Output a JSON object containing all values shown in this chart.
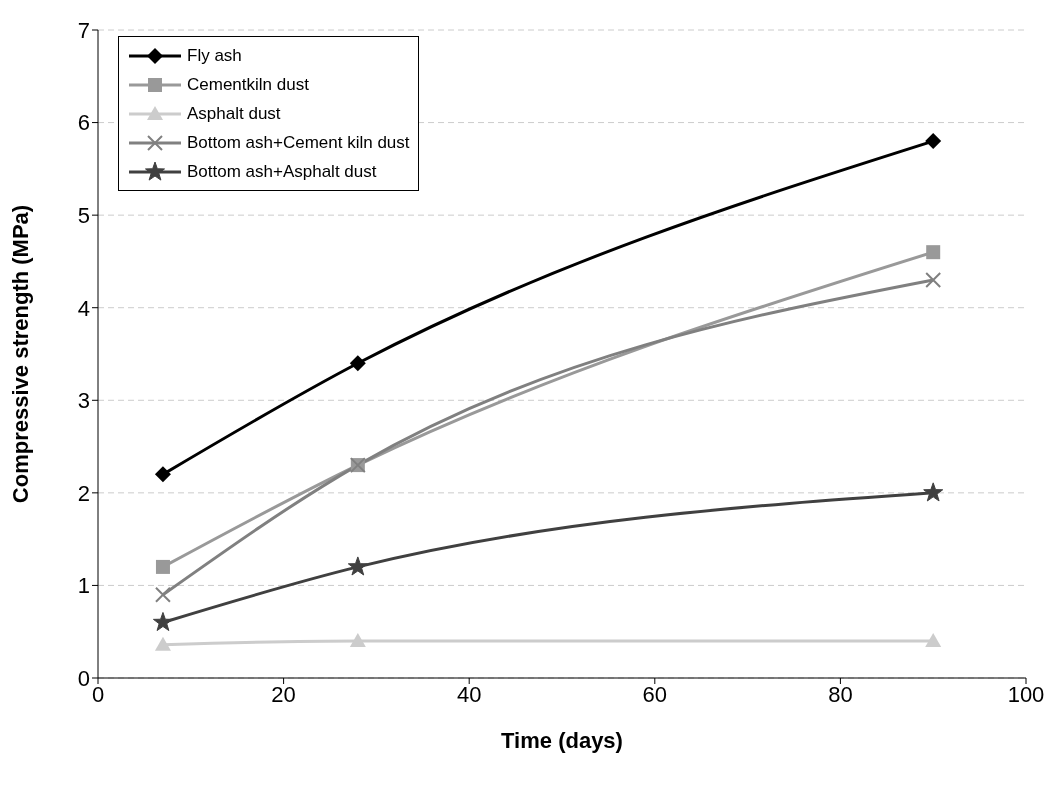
{
  "chart_data": {
    "type": "line",
    "xlabel": "Time (days)",
    "ylabel": "Compressive strength (MPa)",
    "x": [
      7,
      28,
      90
    ],
    "xlim": [
      0,
      100
    ],
    "xticks": [
      0,
      20,
      40,
      60,
      80,
      100
    ],
    "ylim": [
      0,
      7
    ],
    "yticks": [
      0,
      1,
      2,
      3,
      4,
      5,
      6,
      7
    ],
    "grid": "y",
    "legend": "top left",
    "line_style": "solid",
    "series": [
      {
        "name": "Fly ash",
        "color": "#000000",
        "marker": "diamond",
        "values": [
          2.2,
          3.4,
          5.8
        ]
      },
      {
        "name": "Cementkiln dust",
        "color": "#999999",
        "marker": "square",
        "values": [
          1.2,
          2.3,
          4.6
        ]
      },
      {
        "name": "Asphalt dust",
        "color": "#cccccc",
        "marker": "triangle",
        "values": [
          0.36,
          0.4,
          0.4
        ]
      },
      {
        "name": "Bottom ash+Cement kiln dust",
        "color": "#808080",
        "marker": "cross",
        "values": [
          0.9,
          2.3,
          4.3
        ]
      },
      {
        "name": "Bottom ash+Asphalt dust",
        "color": "#404040",
        "marker": "star",
        "values": [
          0.6,
          1.2,
          2.0
        ]
      }
    ]
  }
}
